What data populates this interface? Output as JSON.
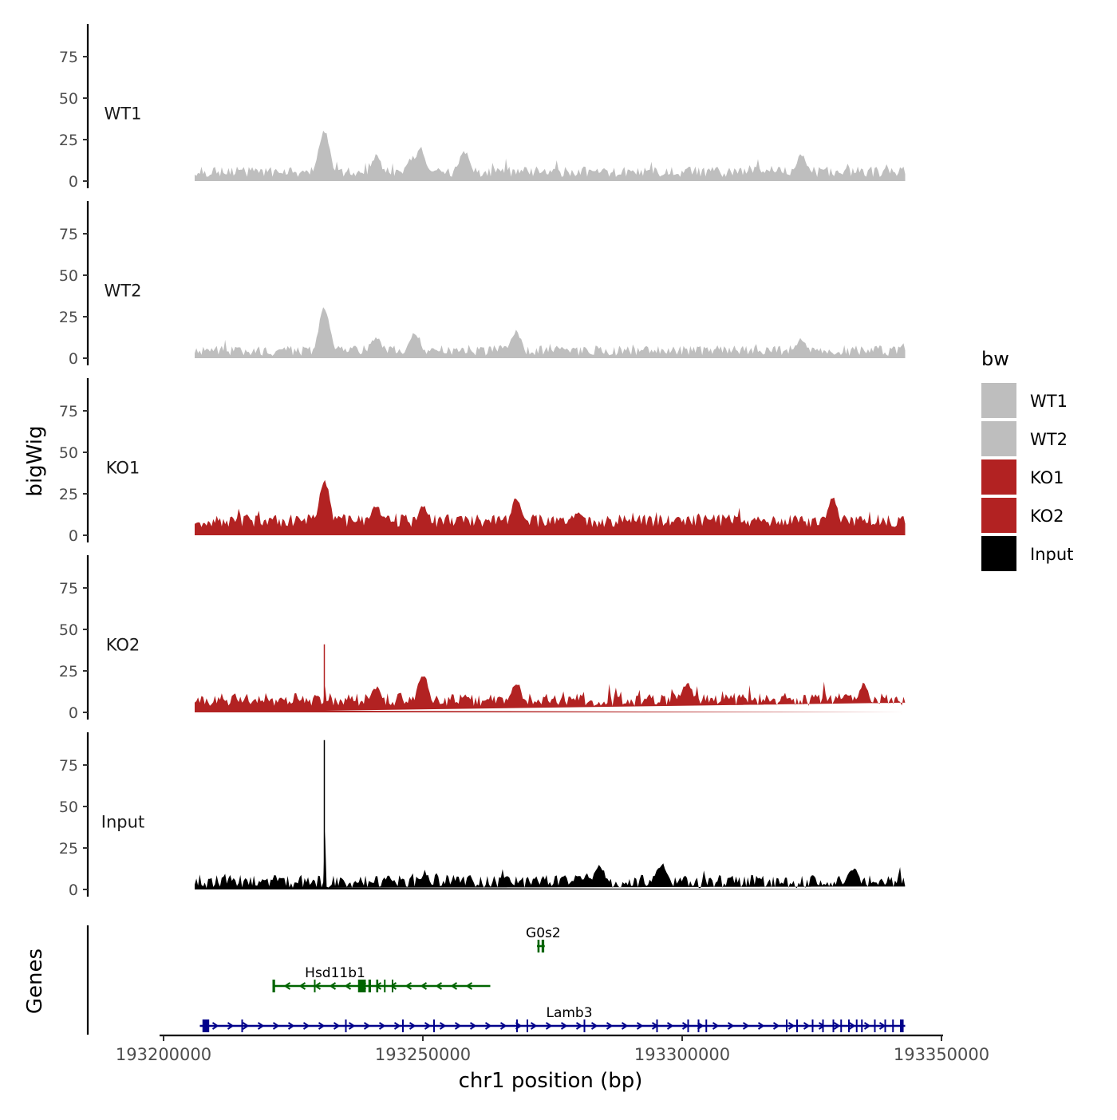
{
  "chart_data": {
    "type": "area",
    "title": "",
    "ylabel": "bigWig",
    "xlabel": "chr1 position (bp)",
    "genes_label": "Genes",
    "ylim": [
      0,
      95
    ],
    "xlim": [
      193200000,
      193350000
    ],
    "yticks": [
      0,
      25,
      50,
      75
    ],
    "xticks": [
      193200000,
      193250000,
      193300000,
      193350000
    ],
    "xtick_labels": [
      "193200000",
      "193250000",
      "193300000",
      "193350000"
    ],
    "region": [
      193206000,
      193343000
    ],
    "legend": {
      "title": "bw",
      "position": "right",
      "entries": [
        {
          "label": "WT1",
          "color": "#bebebe"
        },
        {
          "label": "WT2",
          "color": "#bebebe"
        },
        {
          "label": "KO1",
          "color": "#b22222"
        },
        {
          "label": "KO2",
          "color": "#b22222"
        },
        {
          "label": "Input",
          "color": "#000000"
        }
      ]
    },
    "series": [
      {
        "name": "WT1",
        "color": "#bebebe",
        "baseline": 5,
        "noise": 4,
        "seed": 11,
        "bumps": [
          {
            "x": 193231000,
            "y": 30
          },
          {
            "x": 193249500,
            "y": 20
          },
          {
            "x": 193241000,
            "y": 15
          },
          {
            "x": 193258000,
            "y": 18
          },
          {
            "x": 193248000,
            "y": 14
          },
          {
            "x": 193323000,
            "y": 16
          }
        ]
      },
      {
        "name": "WT2",
        "color": "#bebebe",
        "baseline": 4,
        "noise": 4,
        "seed": 23,
        "bumps": [
          {
            "x": 193231000,
            "y": 30
          },
          {
            "x": 193248500,
            "y": 15
          },
          {
            "x": 193268000,
            "y": 16
          },
          {
            "x": 193241000,
            "y": 12
          },
          {
            "x": 193323000,
            "y": 12
          }
        ]
      },
      {
        "name": "KO1",
        "color": "#b22222",
        "baseline": 8,
        "noise": 5,
        "seed": 37,
        "bumps": [
          {
            "x": 193231000,
            "y": 33
          },
          {
            "x": 193250000,
            "y": 18
          },
          {
            "x": 193268000,
            "y": 22
          },
          {
            "x": 193241000,
            "y": 18
          },
          {
            "x": 193280000,
            "y": 14
          },
          {
            "x": 193329000,
            "y": 22
          }
        ]
      },
      {
        "name": "KO2",
        "color": "#b22222",
        "baseline": 7,
        "noise": 5,
        "seed": 51,
        "bumps": [
          {
            "x": 193231000,
            "y": 41
          },
          {
            "x": 193250000,
            "y": 23
          },
          {
            "x": 193241000,
            "y": 15
          },
          {
            "x": 193268000,
            "y": 18
          },
          {
            "x": 193301000,
            "y": 18
          },
          {
            "x": 193335000,
            "y": 17
          }
        ]
      },
      {
        "name": "Input",
        "color": "#000000",
        "baseline": 4,
        "noise": 5,
        "seed": 67,
        "bumps": [
          {
            "x": 193231000,
            "y": 90
          },
          {
            "x": 193284000,
            "y": 15
          },
          {
            "x": 193296000,
            "y": 15
          },
          {
            "x": 193333000,
            "y": 12
          }
        ]
      }
    ],
    "genes": [
      {
        "name": "G0s2",
        "start": 193272000,
        "end": 193273500,
        "strand": "+",
        "color": "#006400",
        "row": 2,
        "exons": [
          [
            193272100,
            193272500
          ],
          [
            193272900,
            193273400
          ]
        ]
      },
      {
        "name": "Hsd11b1",
        "start": 193221000,
        "end": 193263000,
        "strand": "-",
        "color": "#006400",
        "row": 1,
        "exons": [
          [
            193221000,
            193221500
          ],
          [
            193229000,
            193229300
          ],
          [
            193237500,
            193239000
          ],
          [
            193239500,
            193240000
          ],
          [
            193241000,
            193241400
          ],
          [
            193242500,
            193242800
          ],
          [
            193244000,
            193244300
          ]
        ]
      },
      {
        "name": "Lamb3",
        "start": 193207000,
        "end": 193343000,
        "strand": "+",
        "color": "#00008b",
        "row": 0,
        "exons": [
          [
            193207500,
            193208800
          ],
          [
            193215000,
            193215300
          ],
          [
            193235000,
            193235300
          ],
          [
            193246000,
            193246300
          ],
          [
            193252000,
            193252300
          ],
          [
            193268000,
            193268300
          ],
          [
            193270000,
            193270300
          ],
          [
            193281000,
            193281300
          ],
          [
            193295000,
            193295300
          ],
          [
            193301000,
            193301300
          ],
          [
            193303000,
            193303300
          ],
          [
            193304500,
            193304800
          ],
          [
            193320000,
            193320300
          ],
          [
            193322000,
            193322300
          ],
          [
            193325000,
            193325300
          ],
          [
            193327000,
            193327300
          ],
          [
            193329000,
            193329300
          ],
          [
            193330500,
            193330800
          ],
          [
            193332000,
            193332300
          ],
          [
            193333500,
            193333800
          ],
          [
            193334500,
            193334800
          ],
          [
            193337000,
            193337300
          ],
          [
            193339000,
            193339300
          ],
          [
            193340500,
            193340800
          ],
          [
            193342000,
            193342700
          ]
        ]
      }
    ]
  }
}
